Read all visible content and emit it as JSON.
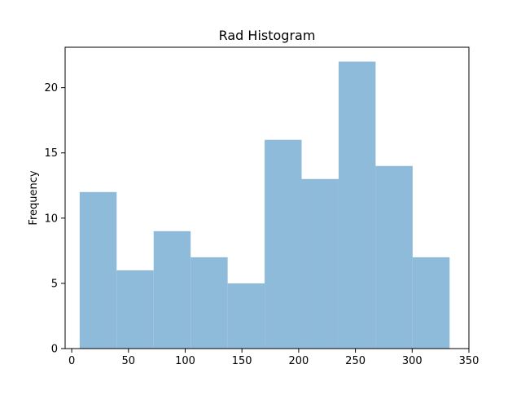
{
  "chart_data": {
    "type": "bar",
    "title": "Rad Histogram",
    "xlabel": "",
    "ylabel": "Frequency",
    "xlim": [
      -5.8,
      350
    ],
    "ylim": [
      0,
      23.1
    ],
    "grid": false,
    "bar_color": "#8fbbda",
    "bins": [
      {
        "x0": 7.0,
        "x1": 39.6,
        "count": 12
      },
      {
        "x0": 39.6,
        "x1": 72.2,
        "count": 6
      },
      {
        "x0": 72.2,
        "x1": 104.8,
        "count": 9
      },
      {
        "x0": 104.8,
        "x1": 137.4,
        "count": 7
      },
      {
        "x0": 137.4,
        "x1": 170.0,
        "count": 5
      },
      {
        "x0": 170.0,
        "x1": 202.6,
        "count": 16
      },
      {
        "x0": 202.6,
        "x1": 235.2,
        "count": 13
      },
      {
        "x0": 235.2,
        "x1": 267.8,
        "count": 22
      },
      {
        "x0": 267.8,
        "x1": 300.4,
        "count": 14
      },
      {
        "x0": 300.4,
        "x1": 333.0,
        "count": 7
      }
    ],
    "x_ticks": [
      0,
      50,
      100,
      150,
      200,
      250,
      300,
      350
    ],
    "x_tick_labels": [
      "0",
      "50",
      "100",
      "150",
      "200",
      "250",
      "300",
      "350"
    ],
    "y_ticks": [
      0,
      5,
      10,
      15,
      20
    ],
    "y_tick_labels": [
      "0",
      "5",
      "10",
      "15",
      "20"
    ]
  }
}
